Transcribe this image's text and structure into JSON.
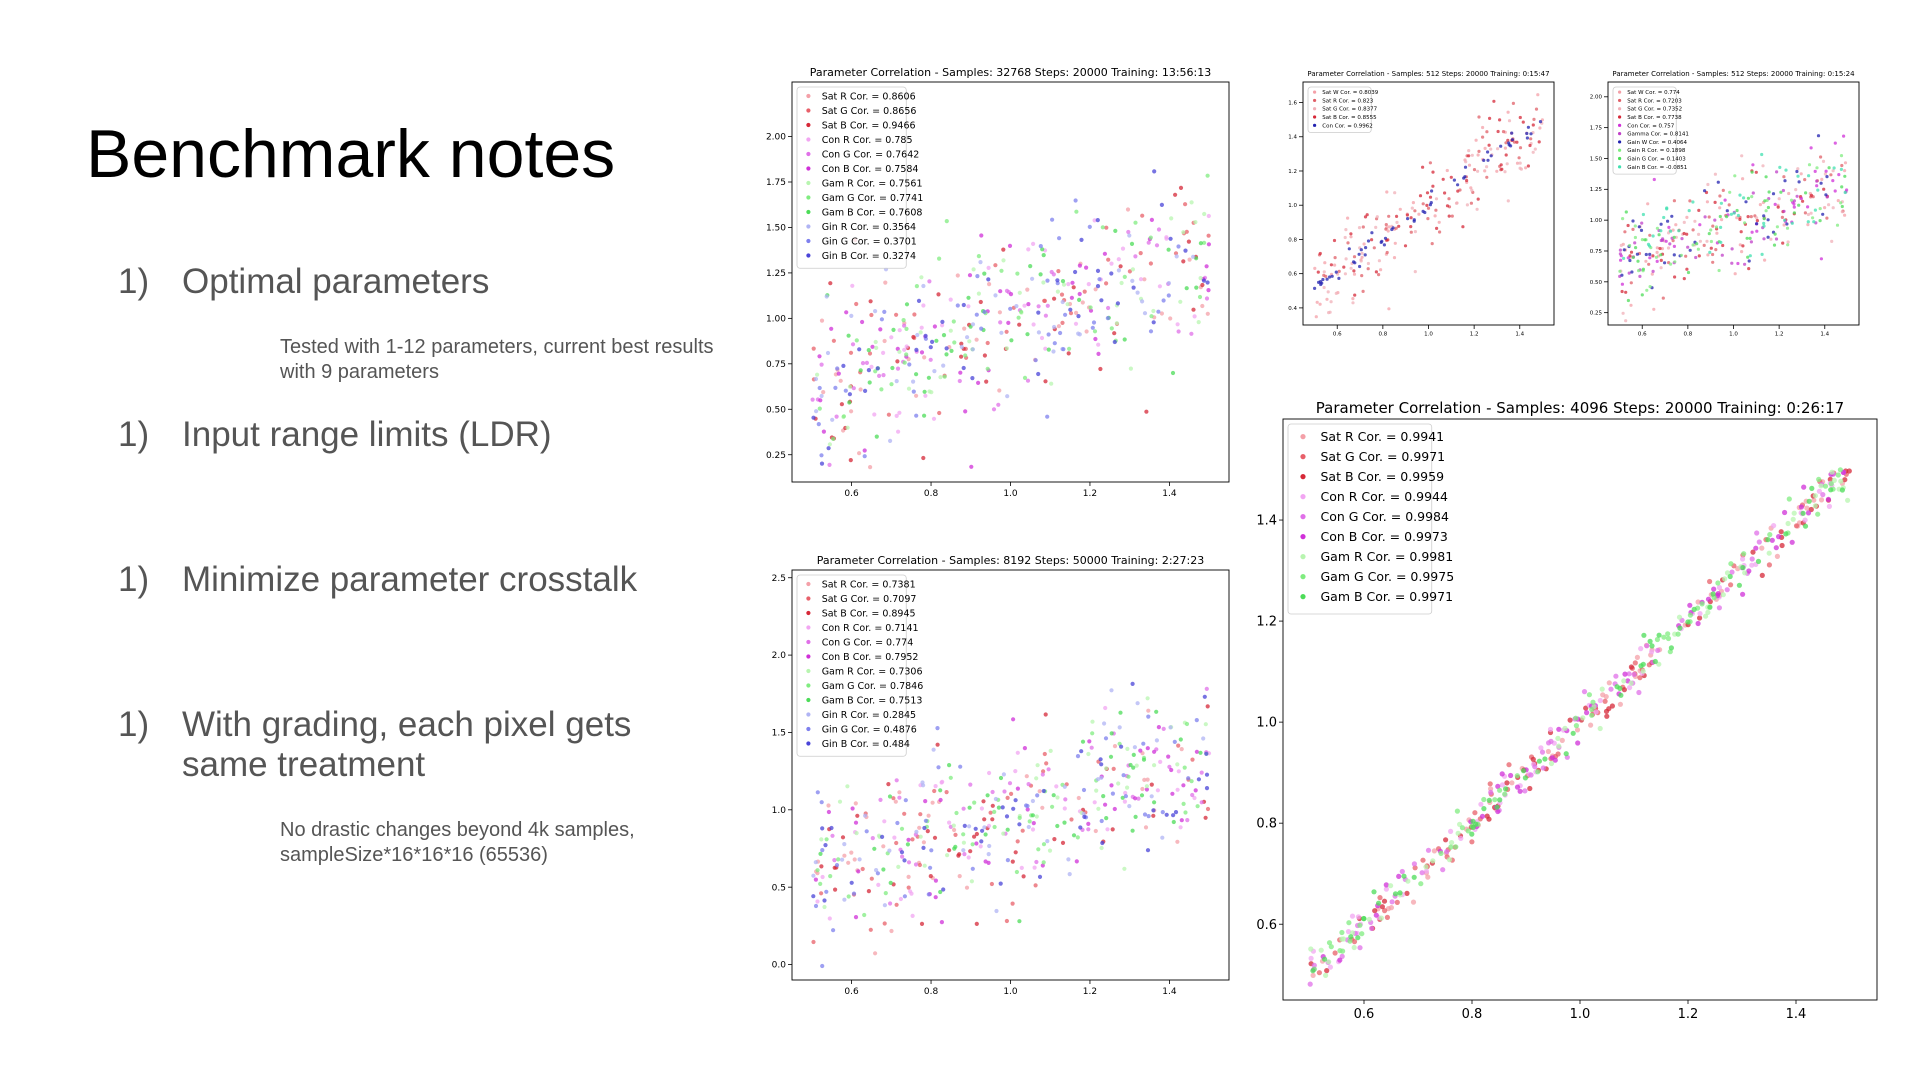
{
  "slide": {
    "title": "Benchmark notes",
    "items": [
      {
        "num": "1)",
        "text": "Optimal parameters"
      },
      {
        "num": "1)",
        "text": "Input range limits (LDR)"
      },
      {
        "num": "1)",
        "text": "Minimize parameter crosstalk"
      },
      {
        "num": "1)",
        "text": "With grading, each pixel gets same treatment"
      }
    ],
    "notes": [
      "Tested with 1-12 parameters, current best results with 9 parameters",
      "No drastic changes beyond 4k samples, sampleSize*16*16*16 (65536)"
    ]
  },
  "chart_data": [
    {
      "id": "c1",
      "type": "scatter",
      "title": "Parameter Correlation - Samples: 32768 Steps: 20000 Training: 13:56:13",
      "xlim": [
        0.45,
        1.55
      ],
      "ylim": [
        0.1,
        2.3
      ],
      "xticks": [
        0.6,
        0.8,
        1.0,
        1.2,
        1.4
      ],
      "yticks": [
        0.25,
        0.5,
        0.75,
        1.0,
        1.25,
        1.5,
        1.75,
        2.0
      ],
      "xtick_labels": [
        "0.6",
        "0.8",
        "1.0",
        "1.2",
        "1.4"
      ],
      "ytick_labels": [
        "0.25",
        "0.50",
        "0.75",
        "1.00",
        "1.25",
        "1.50",
        "1.75",
        "2.00"
      ],
      "legend": "top-left",
      "grid": false,
      "trend": {
        "slope": 0.75,
        "intercept": 0.25,
        "noise": 0.22
      },
      "points_per_series": 42,
      "series": [
        {
          "name": "Sat R Cor. = 0.8606",
          "color": "#f4a0a8"
        },
        {
          "name": "Sat G Cor. = 0.8656",
          "color": "#e8606a"
        },
        {
          "name": "Sat B Cor. = 0.9466",
          "color": "#d62838"
        },
        {
          "name": "Con R Cor. = 0.785",
          "color": "#f2a6f2"
        },
        {
          "name": "Con G Cor. = 0.7642",
          "color": "#e070e8"
        },
        {
          "name": "Con B Cor. = 0.7584",
          "color": "#d030d8"
        },
        {
          "name": "Gam R Cor. = 0.7561",
          "color": "#b8f5b0"
        },
        {
          "name": "Gam G Cor. = 0.7741",
          "color": "#80ec80"
        },
        {
          "name": "Gam B Cor. = 0.7608",
          "color": "#4cdc58"
        },
        {
          "name": "Gin R Cor. = 0.3564",
          "color": "#b0b4f4"
        },
        {
          "name": "Gin G Cor. = 0.3701",
          "color": "#7e80ee"
        },
        {
          "name": "Gin B Cor. = 0.3274",
          "color": "#4a44d8"
        }
      ]
    },
    {
      "id": "c2",
      "type": "scatter",
      "title": "Parameter Correlation - Samples: 8192 Steps: 50000 Training: 2:27:23",
      "xlim": [
        0.45,
        1.55
      ],
      "ylim": [
        -0.1,
        2.55
      ],
      "xticks": [
        0.6,
        0.8,
        1.0,
        1.2,
        1.4
      ],
      "yticks": [
        0.0,
        0.5,
        1.0,
        1.5,
        2.0,
        2.5
      ],
      "xtick_labels": [
        "0.6",
        "0.8",
        "1.0",
        "1.2",
        "1.4"
      ],
      "ytick_labels": [
        "0.0",
        "0.5",
        "1.0",
        "1.5",
        "2.0",
        "2.5"
      ],
      "legend": "top-left",
      "grid": false,
      "trend": {
        "slope": 0.7,
        "intercept": 0.28,
        "noise": 0.25
      },
      "points_per_series": 42,
      "series": [
        {
          "name": "Sat R Cor. = 0.7381",
          "color": "#f4a0a8"
        },
        {
          "name": "Sat G Cor. = 0.7097",
          "color": "#e8606a"
        },
        {
          "name": "Sat B Cor. = 0.8945",
          "color": "#d62838"
        },
        {
          "name": "Con R Cor. = 0.7141",
          "color": "#f2a6f2"
        },
        {
          "name": "Con G Cor. = 0.774",
          "color": "#e070e8"
        },
        {
          "name": "Con B Cor. = 0.7952",
          "color": "#d030d8"
        },
        {
          "name": "Gam R Cor. = 0.7306",
          "color": "#b8f5b0"
        },
        {
          "name": "Gam G Cor. = 0.7846",
          "color": "#80ec80"
        },
        {
          "name": "Gam B Cor. = 0.7513",
          "color": "#4cdc58"
        },
        {
          "name": "Gin R Cor. = 0.2845",
          "color": "#b0b4f4"
        },
        {
          "name": "Gin G Cor. = 0.4876",
          "color": "#7e80ee"
        },
        {
          "name": "Gin B Cor. = 0.484",
          "color": "#4a44d8"
        }
      ]
    },
    {
      "id": "c3",
      "type": "scatter",
      "title": "Parameter Correlation - Samples: 512 Steps: 20000 Training: 0:15:47",
      "xlim": [
        0.45,
        1.55
      ],
      "ylim": [
        0.3,
        1.72
      ],
      "xticks": [
        0.6,
        0.8,
        1.0,
        1.2,
        1.4
      ],
      "yticks": [
        0.4,
        0.6,
        0.8,
        1.0,
        1.2,
        1.4,
        1.6
      ],
      "xtick_labels": [
        "0.6",
        "0.8",
        "1.0",
        "1.2",
        "1.4"
      ],
      "ytick_labels": [
        "0.4",
        "0.6",
        "0.8",
        "1.0",
        "1.2",
        "1.4",
        "1.6"
      ],
      "legend": "top-left",
      "grid": false,
      "trend": {
        "slope": 1.0,
        "intercept": 0.0,
        "noise": 0.12
      },
      "points_per_series": 55,
      "series": [
        {
          "name": "Sat W Cor. = 0.8039",
          "color": "#f4a0a8"
        },
        {
          "name": "Sat R Cor. = 0.823",
          "color": "#e06068"
        },
        {
          "name": "Sat G Cor. = 0.8377",
          "color": "#f0b0b8"
        },
        {
          "name": "Sat B Cor. = 0.8555",
          "color": "#d62838"
        },
        {
          "name": "Con Cor. = 0.9962",
          "color": "#2222b0",
          "noise": 0.03
        }
      ]
    },
    {
      "id": "c4",
      "type": "scatter",
      "title": "Parameter Correlation - Samples: 512 Steps: 20000 Training: 0:15:24",
      "xlim": [
        0.45,
        1.55
      ],
      "ylim": [
        0.15,
        2.12
      ],
      "xticks": [
        0.6,
        0.8,
        1.0,
        1.2,
        1.4
      ],
      "yticks": [
        0.25,
        0.5,
        0.75,
        1.0,
        1.25,
        1.5,
        1.75,
        2.0
      ],
      "xtick_labels": [
        "0.6",
        "0.8",
        "1.0",
        "1.2",
        "1.4"
      ],
      "ytick_labels": [
        "0.25",
        "0.50",
        "0.75",
        "1.00",
        "1.25",
        "1.50",
        "1.75",
        "2.00"
      ],
      "legend": "top-left",
      "grid": false,
      "trend": {
        "slope": 0.7,
        "intercept": 0.28,
        "noise": 0.2
      },
      "points_per_series": 40,
      "series": [
        {
          "name": "Sat W Cor. = 0.774",
          "color": "#f4a0a8"
        },
        {
          "name": "Sat R Cor. = 0.7203",
          "color": "#e06068"
        },
        {
          "name": "Sat G Cor. = 0.7352",
          "color": "#f0b0b8"
        },
        {
          "name": "Sat B Cor. = 0.7738",
          "color": "#d62838"
        },
        {
          "name": "Con Cor. = 0.757",
          "color": "#d030d8"
        },
        {
          "name": "Gamma Cor. = 0.8141",
          "color": "#c040c8"
        },
        {
          "name": "Gain W Cor. = 0.4064",
          "color": "#2222b0"
        },
        {
          "name": "Gain R Cor. = 0.1898",
          "color": "#80ec80"
        },
        {
          "name": "Gain G Cor. = 0.1403",
          "color": "#4cdc58"
        },
        {
          "name": "Gain B Cor. = -0.0851",
          "color": "#40e0b0"
        }
      ]
    },
    {
      "id": "c5",
      "type": "scatter",
      "title": "Parameter Correlation - Samples: 4096 Steps: 20000 Training: 0:26:17",
      "xlim": [
        0.45,
        1.55
      ],
      "ylim": [
        0.45,
        1.6
      ],
      "xticks": [
        0.6,
        0.8,
        1.0,
        1.2,
        1.4
      ],
      "yticks": [
        0.6,
        0.8,
        1.0,
        1.2,
        1.4
      ],
      "xtick_labels": [
        "0.6",
        "0.8",
        "1.0",
        "1.2",
        "1.4"
      ],
      "ytick_labels": [
        "0.6",
        "0.8",
        "1.0",
        "1.2",
        "1.4"
      ],
      "legend": "top-left",
      "grid": false,
      "trend": {
        "slope": 1.0,
        "intercept": 0.0,
        "noise": 0.02
      },
      "points_per_series": 55,
      "series": [
        {
          "name": "Sat R Cor. = 0.9941",
          "color": "#f4a0a8"
        },
        {
          "name": "Sat G Cor. = 0.9971",
          "color": "#e8606a"
        },
        {
          "name": "Sat B Cor. = 0.9959",
          "color": "#d62838"
        },
        {
          "name": "Con R Cor. = 0.9944",
          "color": "#f2a6f2"
        },
        {
          "name": "Con G Cor. = 0.9984",
          "color": "#e070e8"
        },
        {
          "name": "Con B Cor. = 0.9973",
          "color": "#d030d8"
        },
        {
          "name": "Gam R Cor. = 0.9981",
          "color": "#b8f5b0"
        },
        {
          "name": "Gam G Cor. = 0.9975",
          "color": "#80ec80"
        },
        {
          "name": "Gam B Cor. = 0.9971",
          "color": "#4cdc58"
        }
      ]
    }
  ]
}
